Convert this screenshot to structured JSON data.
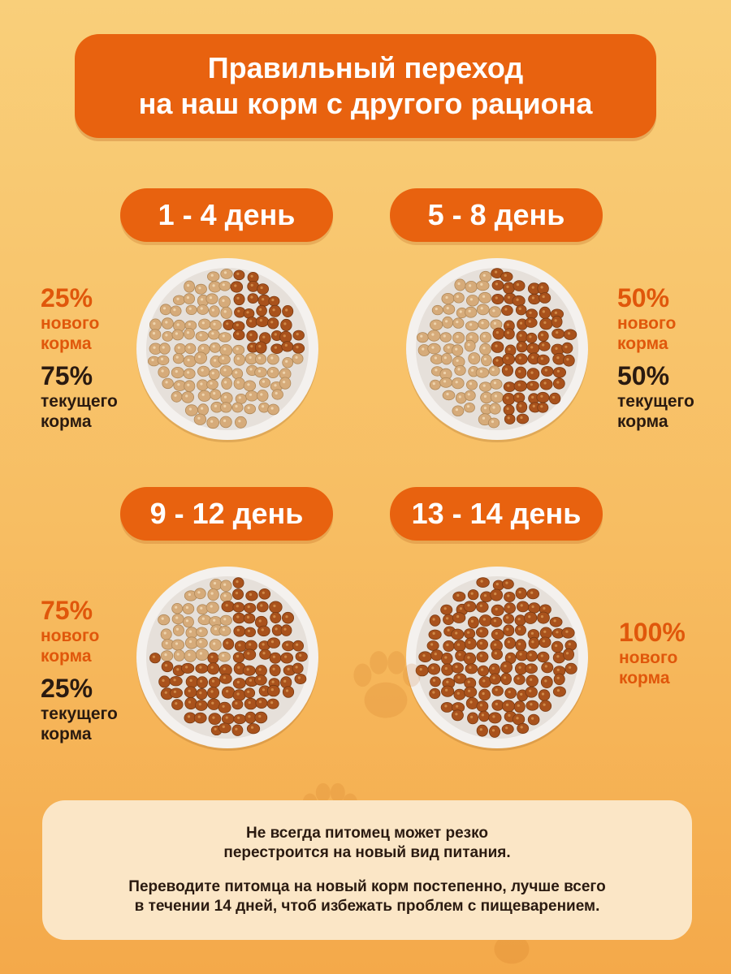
{
  "title": {
    "line1": "Правильный переход",
    "line2": "на наш корм с другого рациона"
  },
  "stages": [
    {
      "days": "1 - 4 день",
      "new_pct": "25%",
      "new_label1": "нового",
      "new_label2": "корма",
      "cur_pct": "75%",
      "cur_label1": "текущего",
      "cur_label2": "корма",
      "new_fraction": 0.25
    },
    {
      "days": "5 - 8 день",
      "new_pct": "50%",
      "new_label1": "нового",
      "new_label2": "корма",
      "cur_pct": "50%",
      "cur_label1": "текущего",
      "cur_label2": "корма",
      "new_fraction": 0.5
    },
    {
      "days": "9 - 12 день",
      "new_pct": "75%",
      "new_label1": "нового",
      "new_label2": "корма",
      "cur_pct": "25%",
      "cur_label1": "текущего",
      "cur_label2": "корма",
      "new_fraction": 0.75
    },
    {
      "days": "13 - 14 день",
      "new_pct": "100%",
      "new_label1": "нового",
      "new_label2": "корма",
      "new_fraction": 1.0
    }
  ],
  "note": {
    "line1": "Не всегда питомец может резко",
    "line2": "перестроится на новый вид питания.",
    "line3": "Переводите питомца на новый корм постепенно, лучше всего",
    "line4": "в течении 14 дней, чтоб избежать проблем с пищеварением."
  },
  "colors": {
    "accent": "#e8620f",
    "new_food": "#a9521c",
    "current_food": "#d6ab7a"
  }
}
